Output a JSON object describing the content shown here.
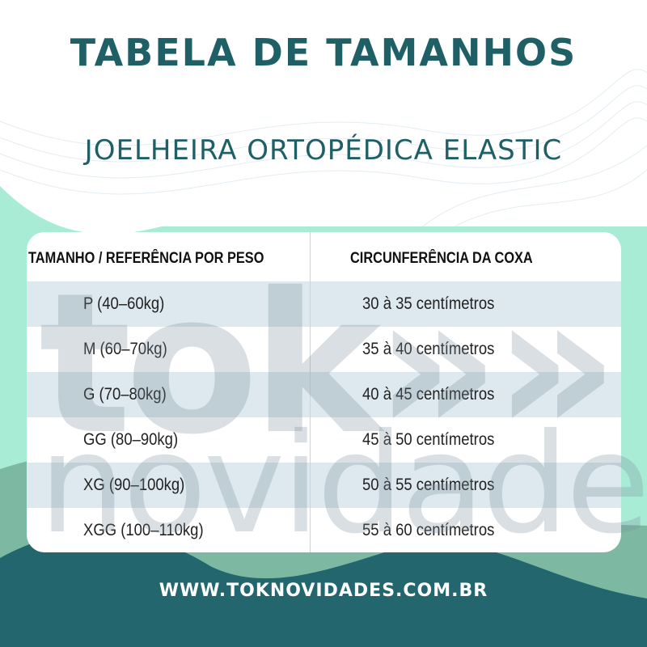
{
  "header": {
    "title": "TABELA DE TAMANHOS",
    "subtitle": "JOELHEIRA ORTOPÉDICA ELASTIC"
  },
  "table": {
    "columns": [
      "TAMANHO / REFERÊNCIA POR PESO",
      "CIRCUNFERÊNCIA DA COXA"
    ],
    "rows": [
      [
        "P (40–60kg)",
        "30 à 35 centímetros"
      ],
      [
        "M (60–70kg)",
        "35 à 40 centímetros"
      ],
      [
        "G (70–80kg)",
        "40 à 45 centímetros"
      ],
      [
        "GG (80–90kg)",
        "45 à 50 centímetros"
      ],
      [
        "XG (90–100kg)",
        "50 à 55 centímetros"
      ],
      [
        "XGG (100–110kg)",
        "55 à 60 centímetros"
      ]
    ]
  },
  "watermark": {
    "line1": "tok»»",
    "line2": "novidades"
  },
  "footer": {
    "url": "WWW.TOKNOVIDADES.COM.BR"
  },
  "colors": {
    "title": "#1f5f66",
    "mint": "#a9ecd6",
    "green": "#7db9a2",
    "teal": "#23666e",
    "stripe": "#dde9ef"
  }
}
